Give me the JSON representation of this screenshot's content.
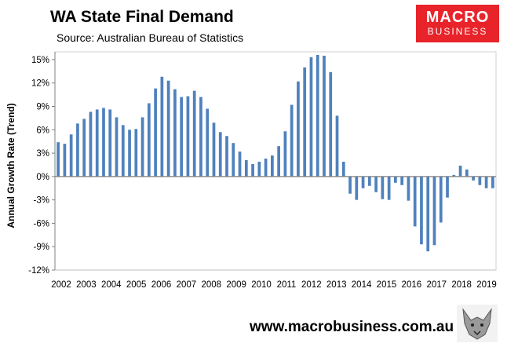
{
  "header": {
    "title": "WA State Final Demand",
    "subtitle": "Source: Australian Bureau of Statistics"
  },
  "logo": {
    "line1": "MACRO",
    "line2": "BUSINESS",
    "color": "#e8232a"
  },
  "footer": {
    "url": "www.macrobusiness.com.au"
  },
  "colors": {
    "bar": "#4f81bd",
    "plot_bg": "#ffffff",
    "zero_line": "#7f7f7f"
  },
  "chart_data": {
    "type": "bar",
    "title": "WA State Final Demand",
    "ylabel": "Annual Growth Rate (Trend)",
    "xlabel": "",
    "ylim": [
      -12,
      16
    ],
    "yticks": [
      -12,
      -9,
      -6,
      -3,
      0,
      3,
      6,
      9,
      12,
      15
    ],
    "ytick_labels": [
      "-12%",
      "-9%",
      "-6%",
      "-3%",
      "0%",
      "3%",
      "6%",
      "9%",
      "12%",
      "15%"
    ],
    "year_labels": [
      "2002",
      "2003",
      "2004",
      "2005",
      "2006",
      "2007",
      "2008",
      "2009",
      "2010",
      "2011",
      "2012",
      "2013",
      "2014",
      "2015",
      "2016",
      "2017",
      "2018",
      "2019"
    ],
    "grid": false,
    "values": [
      4.4,
      4.2,
      5.4,
      6.8,
      7.4,
      8.3,
      8.6,
      8.8,
      8.6,
      7.6,
      6.6,
      6.0,
      6.1,
      7.6,
      9.4,
      11.3,
      12.8,
      12.3,
      11.2,
      10.2,
      10.3,
      11.0,
      10.2,
      8.7,
      6.9,
      5.7,
      5.2,
      4.3,
      3.2,
      2.1,
      1.6,
      1.9,
      2.3,
      2.7,
      3.9,
      5.8,
      9.2,
      12.2,
      14.0,
      15.3,
      15.6,
      15.5,
      13.4,
      7.8,
      1.9,
      -2.2,
      -3.0,
      -1.5,
      -1.2,
      -2.0,
      -2.9,
      -3.0,
      -0.8,
      -1.1,
      -3.1,
      -6.4,
      -8.7,
      -9.6,
      -8.8,
      -5.9,
      -2.7,
      0.2,
      1.4,
      0.9,
      -0.5,
      -1.1,
      -1.5,
      -1.5
    ]
  }
}
